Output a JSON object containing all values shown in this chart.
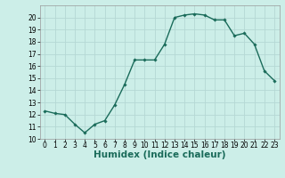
{
  "x": [
    0,
    1,
    2,
    3,
    4,
    5,
    6,
    7,
    8,
    9,
    10,
    11,
    12,
    13,
    14,
    15,
    16,
    17,
    18,
    19,
    20,
    21,
    22,
    23
  ],
  "y": [
    12.3,
    12.1,
    12.0,
    11.2,
    10.5,
    11.2,
    11.5,
    12.8,
    14.5,
    16.5,
    16.5,
    16.5,
    17.8,
    20.0,
    20.2,
    20.3,
    20.2,
    19.8,
    19.8,
    18.5,
    18.7,
    17.8,
    15.6,
    14.8
  ],
  "line_color": "#1a6b5a",
  "marker": "D",
  "marker_size": 1.8,
  "line_width": 1.0,
  "bg_color": "#cceee8",
  "grid_color": "#b5d8d4",
  "grid_minor_color": "#c8e8e4",
  "xlabel": "Humidex (Indice chaleur)",
  "ylim": [
    10,
    21
  ],
  "xlim": [
    -0.5,
    23.5
  ],
  "yticks": [
    10,
    11,
    12,
    13,
    14,
    15,
    16,
    17,
    18,
    19,
    20
  ],
  "xticks": [
    0,
    1,
    2,
    3,
    4,
    5,
    6,
    7,
    8,
    9,
    10,
    11,
    12,
    13,
    14,
    15,
    16,
    17,
    18,
    19,
    20,
    21,
    22,
    23
  ],
  "tick_fontsize": 5.5,
  "xlabel_fontsize": 7.5,
  "xlabel_bold": true
}
